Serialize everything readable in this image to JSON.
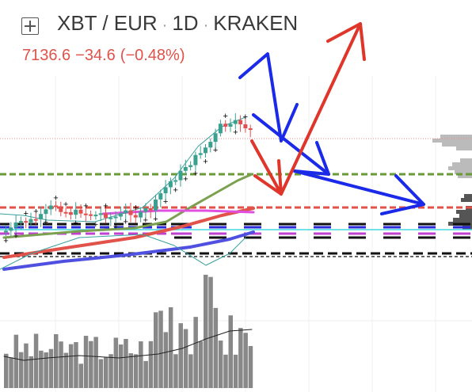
{
  "header": {
    "symbol": "XBT / EUR",
    "separator_1": "·",
    "interval": "1D",
    "separator_2": "·",
    "exchange": "KRAKEN"
  },
  "quote": {
    "last": "7136.6",
    "change": "−34.6",
    "change_percent": "(−0.48%)"
  }
}
